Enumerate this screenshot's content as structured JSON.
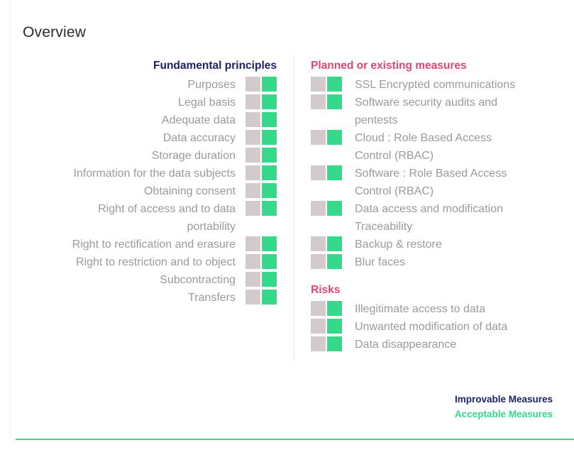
{
  "title": "Overview",
  "colors": {
    "improvable": "#1b2366",
    "acceptable": "#35d98a",
    "risk_heading": "#e8446d",
    "square_gray": "#d2cacb",
    "square_green": "#35d98a"
  },
  "principles": {
    "heading": "Fundamental principles",
    "items": [
      "Purposes",
      "Legal basis",
      "Adequate data",
      "Data accuracy",
      "Storage duration",
      "Information for the data subjects",
      "Obtaining consent",
      "Right of access and to data portability",
      "Right to rectification and erasure",
      "Right to restriction and to object",
      "Subcontracting",
      "Transfers"
    ]
  },
  "measures": {
    "heading": "Planned or existing measures",
    "items": [
      "SSL Encrypted communications",
      "Software security audits and pentests",
      "Cloud : Role Based Access Control (RBAC)",
      "Software : Role Based Access Control (RBAC)",
      "Data access and modification Traceability",
      "Backup & restore",
      "Blur faces"
    ]
  },
  "risks": {
    "heading": "Risks",
    "items": [
      "Illegitimate access to data",
      "Unwanted modification of data",
      "Data disappearance"
    ]
  },
  "legend": {
    "improvable": "Improvable Measures",
    "acceptable": "Acceptable Measures"
  }
}
